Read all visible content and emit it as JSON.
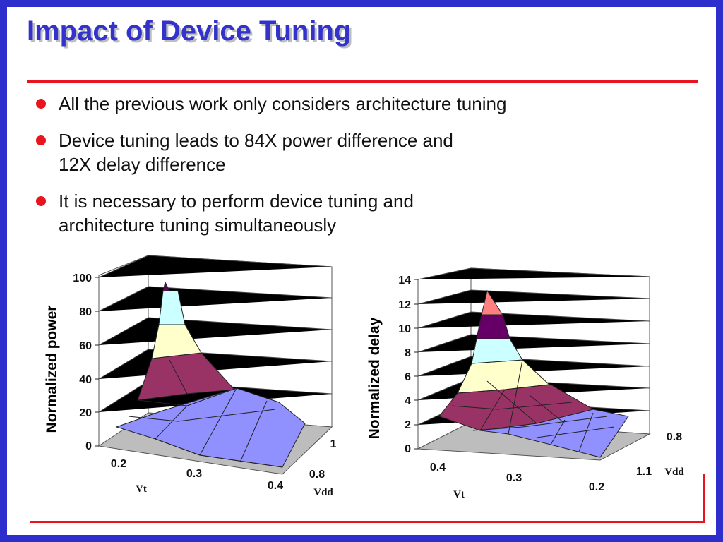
{
  "slide": {
    "title": "Impact of Device Tuning",
    "bullets": [
      {
        "text": "All the previous work only considers architecture tuning"
      },
      {
        "text": "Device tuning leads to 84X power difference and",
        "text2": "12X delay difference"
      },
      {
        "text": "It is necessary to perform device tuning and",
        "text2": "architecture tuning simultaneously"
      }
    ]
  },
  "colors": {
    "accent_red": "#e8141e",
    "frame_blue": "#2e2ecc",
    "title_blue": "#3333cc"
  },
  "chart_data": [
    {
      "type": "surface",
      "ylabel": "Normalized power",
      "x_axis_label": "Vt",
      "depth_axis_label": "Vdd",
      "x_ticks": [
        "0.2",
        "0.3",
        "0.4"
      ],
      "depth_ticks": [
        "0.8",
        "1"
      ],
      "y_ticks": [
        "0",
        "20",
        "40",
        "60",
        "80",
        "100"
      ],
      "ylim": [
        0,
        100
      ],
      "peak_value": 84,
      "color_bands": [
        {
          "range": [
            0,
            20
          ],
          "color": "#9090ff"
        },
        {
          "range": [
            20,
            40
          ],
          "color": "#993366"
        },
        {
          "range": [
            40,
            60
          ],
          "color": "#ffffcc"
        },
        {
          "range": [
            60,
            80
          ],
          "color": "#ccffff"
        },
        {
          "range": [
            80,
            100
          ],
          "color": "#660066"
        }
      ]
    },
    {
      "type": "surface",
      "ylabel": "Normalized delay",
      "x_axis_label": "Vt",
      "depth_axis_label": "Vdd",
      "x_ticks": [
        "0.4",
        "0.3",
        "0.2"
      ],
      "depth_ticks": [
        "1.1",
        "0.8"
      ],
      "y_ticks": [
        "0",
        "2",
        "4",
        "6",
        "8",
        "10",
        "12",
        "14"
      ],
      "ylim": [
        0,
        14
      ],
      "peak_value": 12,
      "color_bands": [
        {
          "range": [
            0,
            2
          ],
          "color": "#9090ff"
        },
        {
          "range": [
            2,
            4
          ],
          "color": "#993366"
        },
        {
          "range": [
            4,
            6
          ],
          "color": "#ffffcc"
        },
        {
          "range": [
            6,
            8
          ],
          "color": "#ccffff"
        },
        {
          "range": [
            8,
            10
          ],
          "color": "#660066"
        },
        {
          "range": [
            10,
            12
          ],
          "color": "#ff8080"
        }
      ]
    }
  ]
}
